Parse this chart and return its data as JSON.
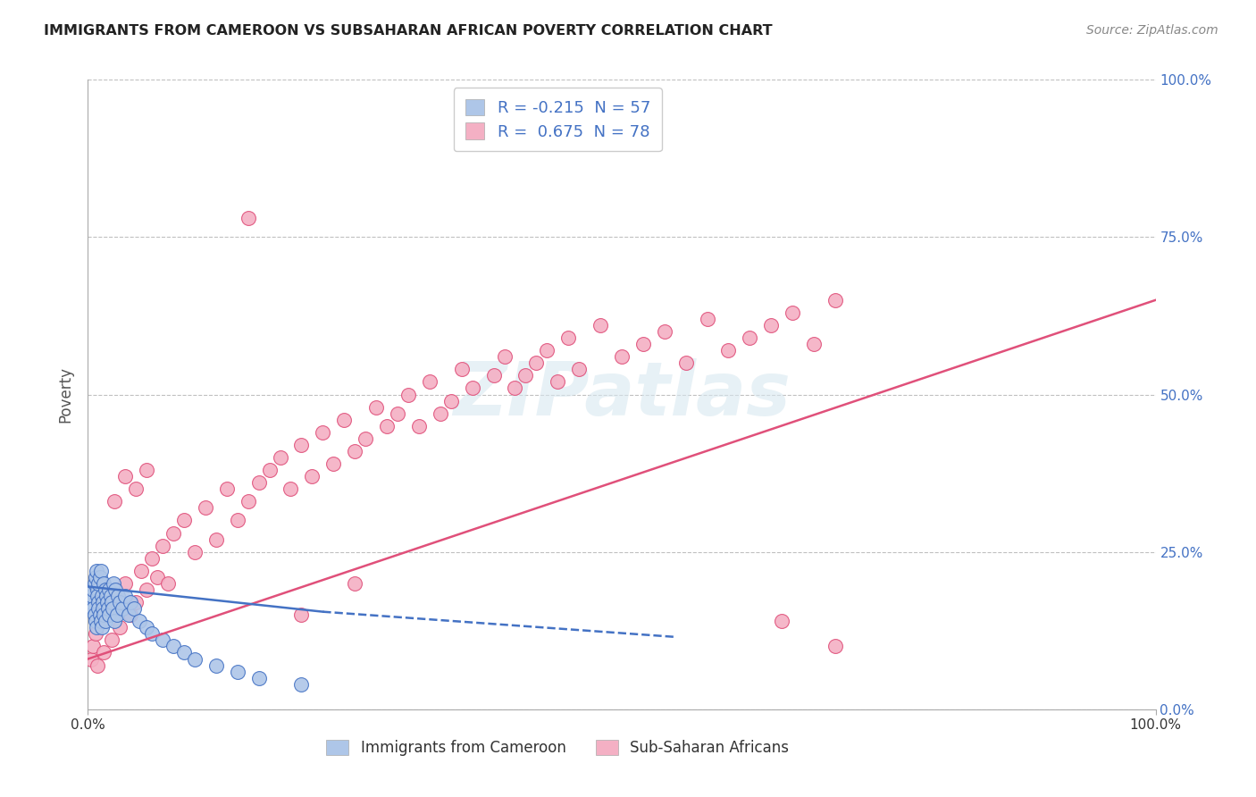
{
  "title": "IMMIGRANTS FROM CAMEROON VS SUBSAHARAN AFRICAN POVERTY CORRELATION CHART",
  "source_text": "Source: ZipAtlas.com",
  "ylabel": "Poverty",
  "xlim": [
    0,
    1
  ],
  "ylim": [
    0,
    1
  ],
  "legend_entries": [
    {
      "r": -0.215,
      "n": 57
    },
    {
      "r": 0.675,
      "n": 78
    }
  ],
  "legend_labels": [
    "Immigrants from Cameroon",
    "Sub-Saharan Africans"
  ],
  "watermark": "ZIPatlas",
  "background_color": "#ffffff",
  "grid_color": "#c0c0c0",
  "blue_scatter_color": "#aec6e8",
  "pink_scatter_color": "#f4b0c4",
  "blue_line_color": "#4472c4",
  "pink_line_color": "#e0507a",
  "blue_edge_color": "#4472c4",
  "pink_edge_color": "#e0507a",
  "blue_points_x": [
    0.003,
    0.004,
    0.005,
    0.005,
    0.006,
    0.006,
    0.007,
    0.007,
    0.008,
    0.008,
    0.009,
    0.009,
    0.01,
    0.01,
    0.01,
    0.011,
    0.011,
    0.012,
    0.012,
    0.013,
    0.013,
    0.014,
    0.014,
    0.015,
    0.015,
    0.016,
    0.016,
    0.017,
    0.018,
    0.019,
    0.02,
    0.02,
    0.021,
    0.022,
    0.023,
    0.024,
    0.025,
    0.026,
    0.027,
    0.028,
    0.03,
    0.032,
    0.035,
    0.038,
    0.04,
    0.043,
    0.048,
    0.055,
    0.06,
    0.07,
    0.08,
    0.09,
    0.1,
    0.12,
    0.14,
    0.16,
    0.2
  ],
  "blue_points_y": [
    0.17,
    0.18,
    0.19,
    0.16,
    0.2,
    0.15,
    0.21,
    0.14,
    0.22,
    0.13,
    0.19,
    0.18,
    0.17,
    0.16,
    0.2,
    0.15,
    0.21,
    0.14,
    0.22,
    0.13,
    0.18,
    0.17,
    0.16,
    0.2,
    0.15,
    0.19,
    0.14,
    0.18,
    0.17,
    0.16,
    0.19,
    0.15,
    0.18,
    0.17,
    0.16,
    0.2,
    0.14,
    0.19,
    0.15,
    0.18,
    0.17,
    0.16,
    0.18,
    0.15,
    0.17,
    0.16,
    0.14,
    0.13,
    0.12,
    0.11,
    0.1,
    0.09,
    0.08,
    0.07,
    0.06,
    0.05,
    0.04
  ],
  "pink_points_x": [
    0.003,
    0.005,
    0.007,
    0.009,
    0.012,
    0.015,
    0.018,
    0.022,
    0.025,
    0.03,
    0.035,
    0.04,
    0.045,
    0.05,
    0.055,
    0.06,
    0.065,
    0.07,
    0.08,
    0.09,
    0.1,
    0.11,
    0.12,
    0.13,
    0.14,
    0.15,
    0.16,
    0.17,
    0.18,
    0.19,
    0.2,
    0.21,
    0.22,
    0.23,
    0.24,
    0.25,
    0.26,
    0.27,
    0.28,
    0.29,
    0.3,
    0.31,
    0.32,
    0.33,
    0.34,
    0.35,
    0.36,
    0.38,
    0.39,
    0.4,
    0.41,
    0.42,
    0.43,
    0.44,
    0.45,
    0.46,
    0.48,
    0.5,
    0.52,
    0.54,
    0.56,
    0.58,
    0.6,
    0.62,
    0.64,
    0.66,
    0.68,
    0.7,
    0.025,
    0.035,
    0.045,
    0.055,
    0.075,
    0.15,
    0.2,
    0.25,
    0.65,
    0.7
  ],
  "pink_points_y": [
    0.08,
    0.1,
    0.12,
    0.07,
    0.14,
    0.09,
    0.16,
    0.11,
    0.18,
    0.13,
    0.2,
    0.15,
    0.17,
    0.22,
    0.19,
    0.24,
    0.21,
    0.26,
    0.28,
    0.3,
    0.25,
    0.32,
    0.27,
    0.35,
    0.3,
    0.33,
    0.36,
    0.38,
    0.4,
    0.35,
    0.42,
    0.37,
    0.44,
    0.39,
    0.46,
    0.41,
    0.43,
    0.48,
    0.45,
    0.47,
    0.5,
    0.45,
    0.52,
    0.47,
    0.49,
    0.54,
    0.51,
    0.53,
    0.56,
    0.51,
    0.53,
    0.55,
    0.57,
    0.52,
    0.59,
    0.54,
    0.61,
    0.56,
    0.58,
    0.6,
    0.55,
    0.62,
    0.57,
    0.59,
    0.61,
    0.63,
    0.58,
    0.65,
    0.33,
    0.37,
    0.35,
    0.38,
    0.2,
    0.78,
    0.15,
    0.2,
    0.14,
    0.1
  ]
}
